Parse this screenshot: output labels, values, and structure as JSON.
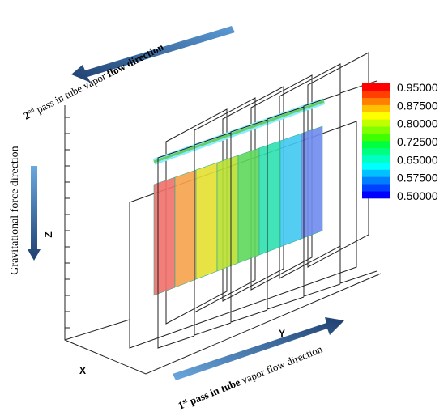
{
  "top_arrow": {
    "parts": [
      "2",
      "nd",
      " pass in tube vapor ",
      "flow direction"
    ]
  },
  "bottom_arrow": {
    "parts": [
      "1",
      "st",
      " pass in tube",
      " vapor flow direction"
    ]
  },
  "gravity_label": "Gravitational force direction",
  "axes": {
    "z": "Z",
    "y": "Y",
    "x": "X"
  },
  "legend": {
    "labels": [
      "0.95000",
      "0.87500",
      "0.80000",
      "0.72500",
      "0.65000",
      "0.57500",
      "0.50000"
    ]
  }
}
